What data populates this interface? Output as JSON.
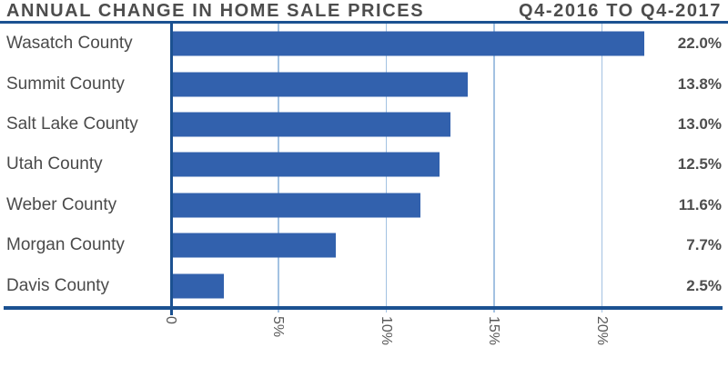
{
  "header": {
    "title_left": "ANNUAL CHANGE IN HOME SALE PRICES",
    "title_right": "Q4-2016 TO Q4-2017"
  },
  "chart_data": {
    "type": "bar",
    "orientation": "horizontal",
    "title": "ANNUAL CHANGE IN HOME SALE PRICES",
    "subtitle": "Q4-2016 TO Q4-2017",
    "categories": [
      "Wasatch County",
      "Summit County",
      "Salt Lake County",
      "Utah County",
      "Weber County",
      "Morgan County",
      "Davis County"
    ],
    "values": [
      22.0,
      13.8,
      13.0,
      12.5,
      11.6,
      7.7,
      2.5
    ],
    "value_labels": [
      "22.0%",
      "13.8%",
      "13.0%",
      "12.5%",
      "11.6%",
      "7.7%",
      "2.5%"
    ],
    "x_ticks": [
      {
        "value": 0,
        "label": "0"
      },
      {
        "value": 5,
        "label": "5%"
      },
      {
        "value": 10,
        "label": "10%"
      },
      {
        "value": 15,
        "label": "15%"
      },
      {
        "value": 20,
        "label": "20%"
      }
    ],
    "xlim": [
      0,
      25.5
    ],
    "axis_max": 25.5,
    "grid": true,
    "tick_label_rotation_deg": 90,
    "legend": "none",
    "colors": {
      "bar": "#3261ad",
      "axis_line": "#1b5191",
      "gridline": "#a3c2e2",
      "title_text": "#4d4d4d",
      "category_text": "#4a4a4a",
      "value_text": "#4d4d4d",
      "tick_text": "#595959",
      "background": "#ffffff"
    }
  }
}
